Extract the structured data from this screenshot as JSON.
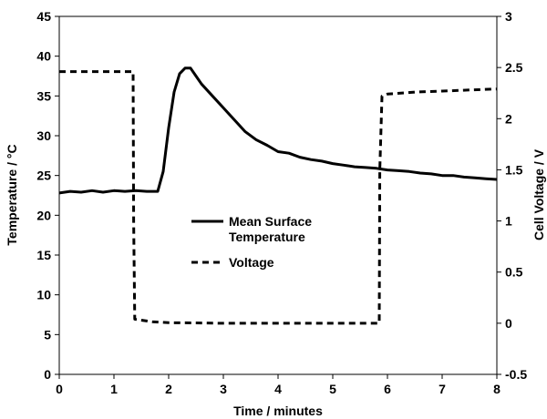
{
  "chart_data": {
    "type": "line",
    "title": "",
    "xlabel": "Time / minutes",
    "ylabel_left": "Temperature / °C",
    "ylabel_right": "Cell Voltage / V",
    "xlim": [
      0,
      8
    ],
    "ylim_left": [
      0,
      45
    ],
    "ylim_right": [
      -0.5,
      3
    ],
    "x_ticks": [
      "0",
      "1",
      "2",
      "3",
      "4",
      "5",
      "6",
      "7",
      "8"
    ],
    "y_left_ticks": [
      "0",
      "5",
      "10",
      "15",
      "20",
      "25",
      "30",
      "35",
      "40",
      "45"
    ],
    "y_right_ticks": [
      "-0.5",
      "0",
      "0.5",
      "1",
      "1.5",
      "2",
      "2.5",
      "3"
    ],
    "grid": false,
    "legend_position": "center",
    "series": [
      {
        "name": "Mean Surface Temperature",
        "axis": "left",
        "style": "solid",
        "x": [
          0,
          0.2,
          0.4,
          0.6,
          0.8,
          1.0,
          1.2,
          1.4,
          1.6,
          1.8,
          1.9,
          2.0,
          2.1,
          2.2,
          2.3,
          2.4,
          2.5,
          2.6,
          2.8,
          3.0,
          3.2,
          3.4,
          3.6,
          3.8,
          4.0,
          4.2,
          4.4,
          4.6,
          4.8,
          5.0,
          5.2,
          5.4,
          5.6,
          5.8,
          6.0,
          6.2,
          6.4,
          6.6,
          6.8,
          7.0,
          7.2,
          7.4,
          7.6,
          7.8,
          8.0
        ],
        "values": [
          22.8,
          23.0,
          22.9,
          23.1,
          22.9,
          23.1,
          23.0,
          23.1,
          23.0,
          23.0,
          25.5,
          31.0,
          35.5,
          37.8,
          38.5,
          38.5,
          37.5,
          36.5,
          35.0,
          33.5,
          32.0,
          30.5,
          29.5,
          28.8,
          28.0,
          27.8,
          27.3,
          27.0,
          26.8,
          26.5,
          26.3,
          26.1,
          26.0,
          25.9,
          25.7,
          25.6,
          25.5,
          25.3,
          25.2,
          25.0,
          25.0,
          24.8,
          24.7,
          24.6,
          24.5
        ]
      },
      {
        "name": "Voltage",
        "axis": "right",
        "style": "dashed",
        "x": [
          0,
          1.35,
          1.36,
          1.38,
          1.5,
          1.7,
          2.0,
          2.5,
          3.0,
          4.0,
          5.0,
          5.85,
          5.86,
          5.9,
          6.0,
          6.5,
          7.0,
          7.5,
          8.0
        ],
        "values": [
          2.46,
          2.46,
          1.0,
          0.04,
          0.03,
          0.015,
          0.005,
          0.003,
          0.0,
          0.0,
          0.0,
          0.0,
          1.5,
          2.22,
          2.24,
          2.26,
          2.27,
          2.28,
          2.29
        ]
      }
    ]
  }
}
